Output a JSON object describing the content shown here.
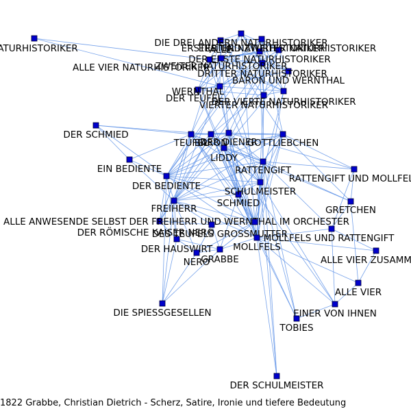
{
  "nodes": [
    "ALLE ANWESENDE SELBST DER FREIHERR UND WERNTHAL IM ORCHESTER",
    "ALLE VIER",
    "ALLE VIER NATURHISTORIKER",
    "ALLE VIER ZUSAMMEN",
    "ALLE",
    "BARON UND WERNTHAL",
    "DER BEDIENTE",
    "DER DIENER",
    "DER ERSTE NATURHISTORIKER",
    "DER HAUSWIRT",
    "DER RÖMISCHE KAISER NERO",
    "DER SCHMIED",
    "DER SCHULMEISTER",
    "DER TEUFEL",
    "DER VIERTE NATURHISTORIKER",
    "DES TEUFELS GROSSMUTTER",
    "DIE DREI ANDERN NATURHISTORIKER",
    "DIE SPIESSGESELLEN",
    "DRITTER NATURHISTORIKER",
    "EIN BEDIENTE",
    "EINER VON IHNEN",
    "ERSTER NATURHISTORIKER",
    "ERSTER UND ZWEITER NATURHISTORIKER",
    "FREIHERR",
    "GOTTLIEBCHEN",
    "GRABBE",
    "GRETCHEN",
    "LIDDY",
    "MOLLFELS",
    "MOLLFELS UND RATTENGIFT",
    "NATURHISTORIKER",
    "NERO",
    "RATTENGIFT",
    "RATTENGIFT UND MOLLFELS",
    "SCHMIED",
    "SCHULMEISTER",
    "TEUFEL",
    "TOBIES",
    "VIERTER NATURHISTORIKER",
    "WERNTHAL",
    "ZWEITER NATURHISTORIKER",
    "BARON"
  ],
  "footer": "1822 Grabbe, Christian Dietrich - Scherz, Satire, Ironie und tiefere Bedeutung",
  "colors": {
    "edge": "#5b8fe6",
    "node": "#0000cc"
  }
}
